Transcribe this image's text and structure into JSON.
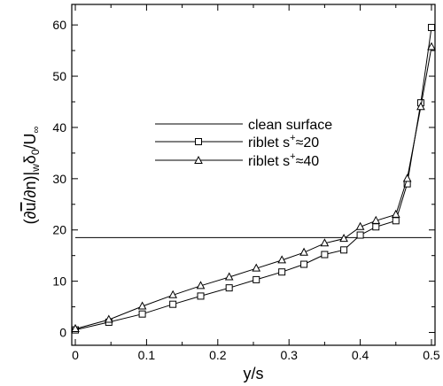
{
  "chart_data": {
    "type": "line",
    "title": "",
    "xlabel": "y/s",
    "ylabel": "(∂ū/∂n)|wδ0/U∞",
    "ylabel_parts": {
      "lead": "(∂",
      "u": "u",
      "mid": "/∂n)|",
      "w": "w",
      "delta": "δ",
      "zero": "0",
      "slash_u": "/U",
      "inf": "∞"
    },
    "xlim": [
      -0.005,
      0.505
    ],
    "ylim": [
      -2.5,
      64
    ],
    "xticks": [
      0,
      0.1,
      0.2,
      0.3,
      0.4,
      0.5
    ],
    "xtick_labels": [
      "0",
      "0.1",
      "0.2",
      "0.3",
      "0.4",
      "0.5"
    ],
    "yticks": [
      0,
      10,
      20,
      30,
      40,
      50,
      60
    ],
    "ytick_labels": [
      "0",
      "10",
      "20",
      "30",
      "40",
      "50",
      "60"
    ],
    "grid": false,
    "legend_position": "center-left",
    "series": [
      {
        "name": "clean surface",
        "marker": "none",
        "x": [
          0,
          0.5
        ],
        "y": [
          18.5,
          18.5
        ]
      },
      {
        "name": "riblet s+≈20",
        "name_parts": {
          "pre": "riblet s",
          "sup": "+",
          "post": "≈20"
        },
        "marker": "square",
        "x": [
          0,
          0.047,
          0.094,
          0.137,
          0.176,
          0.216,
          0.254,
          0.29,
          0.321,
          0.35,
          0.377,
          0.4,
          0.422,
          0.45,
          0.466,
          0.485,
          0.5
        ],
        "y": [
          0.5,
          2.0,
          3.6,
          5.5,
          7.1,
          8.7,
          10.3,
          11.8,
          13.3,
          15.2,
          16.1,
          19.0,
          20.6,
          21.8,
          29.0,
          44.8,
          59.5
        ]
      },
      {
        "name": "riblet s+≈40",
        "name_parts": {
          "pre": "riblet s",
          "sup": "+",
          "post": "≈40"
        },
        "marker": "triangle",
        "x": [
          0,
          0.047,
          0.094,
          0.137,
          0.176,
          0.216,
          0.254,
          0.29,
          0.321,
          0.35,
          0.377,
          0.4,
          0.422,
          0.45,
          0.466,
          0.485,
          0.5
        ],
        "y": [
          0.7,
          2.5,
          5.1,
          7.3,
          9.1,
          10.8,
          12.5,
          14.1,
          15.6,
          17.4,
          18.3,
          20.6,
          21.8,
          23.0,
          30.0,
          44.0,
          55.7
        ]
      }
    ]
  }
}
